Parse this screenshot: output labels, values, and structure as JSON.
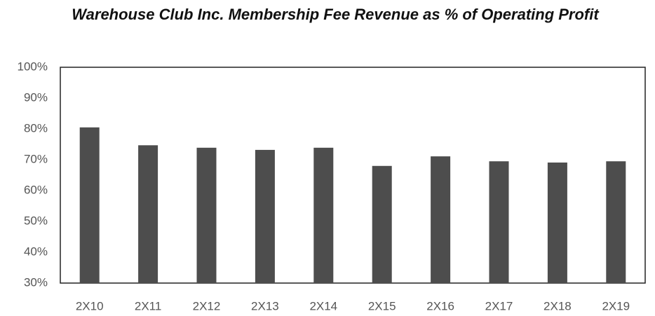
{
  "chart_data": {
    "type": "bar",
    "title": "Warehouse Club Inc. Membership Fee Revenue as % of Operating Profit",
    "categories": [
      "2X10",
      "2X11",
      "2X12",
      "2X13",
      "2X14",
      "2X15",
      "2X16",
      "2X17",
      "2X18",
      "2X19"
    ],
    "values": [
      80.5,
      74.7,
      73.9,
      73.2,
      73.9,
      68,
      71.1,
      69.5,
      69.1,
      69.5
    ],
    "color": "#4d4d4d",
    "ylim": [
      30,
      100
    ],
    "yticks": [
      {
        "value": 30,
        "label": "30%"
      },
      {
        "value": 40,
        "label": "40%"
      },
      {
        "value": 50,
        "label": "50%"
      },
      {
        "value": 60,
        "label": "60%"
      },
      {
        "value": 70,
        "label": "70%"
      },
      {
        "value": 80,
        "label": "80%"
      },
      {
        "value": 90,
        "label": "90%"
      },
      {
        "value": 100,
        "label": "100%"
      }
    ],
    "grid": false
  }
}
